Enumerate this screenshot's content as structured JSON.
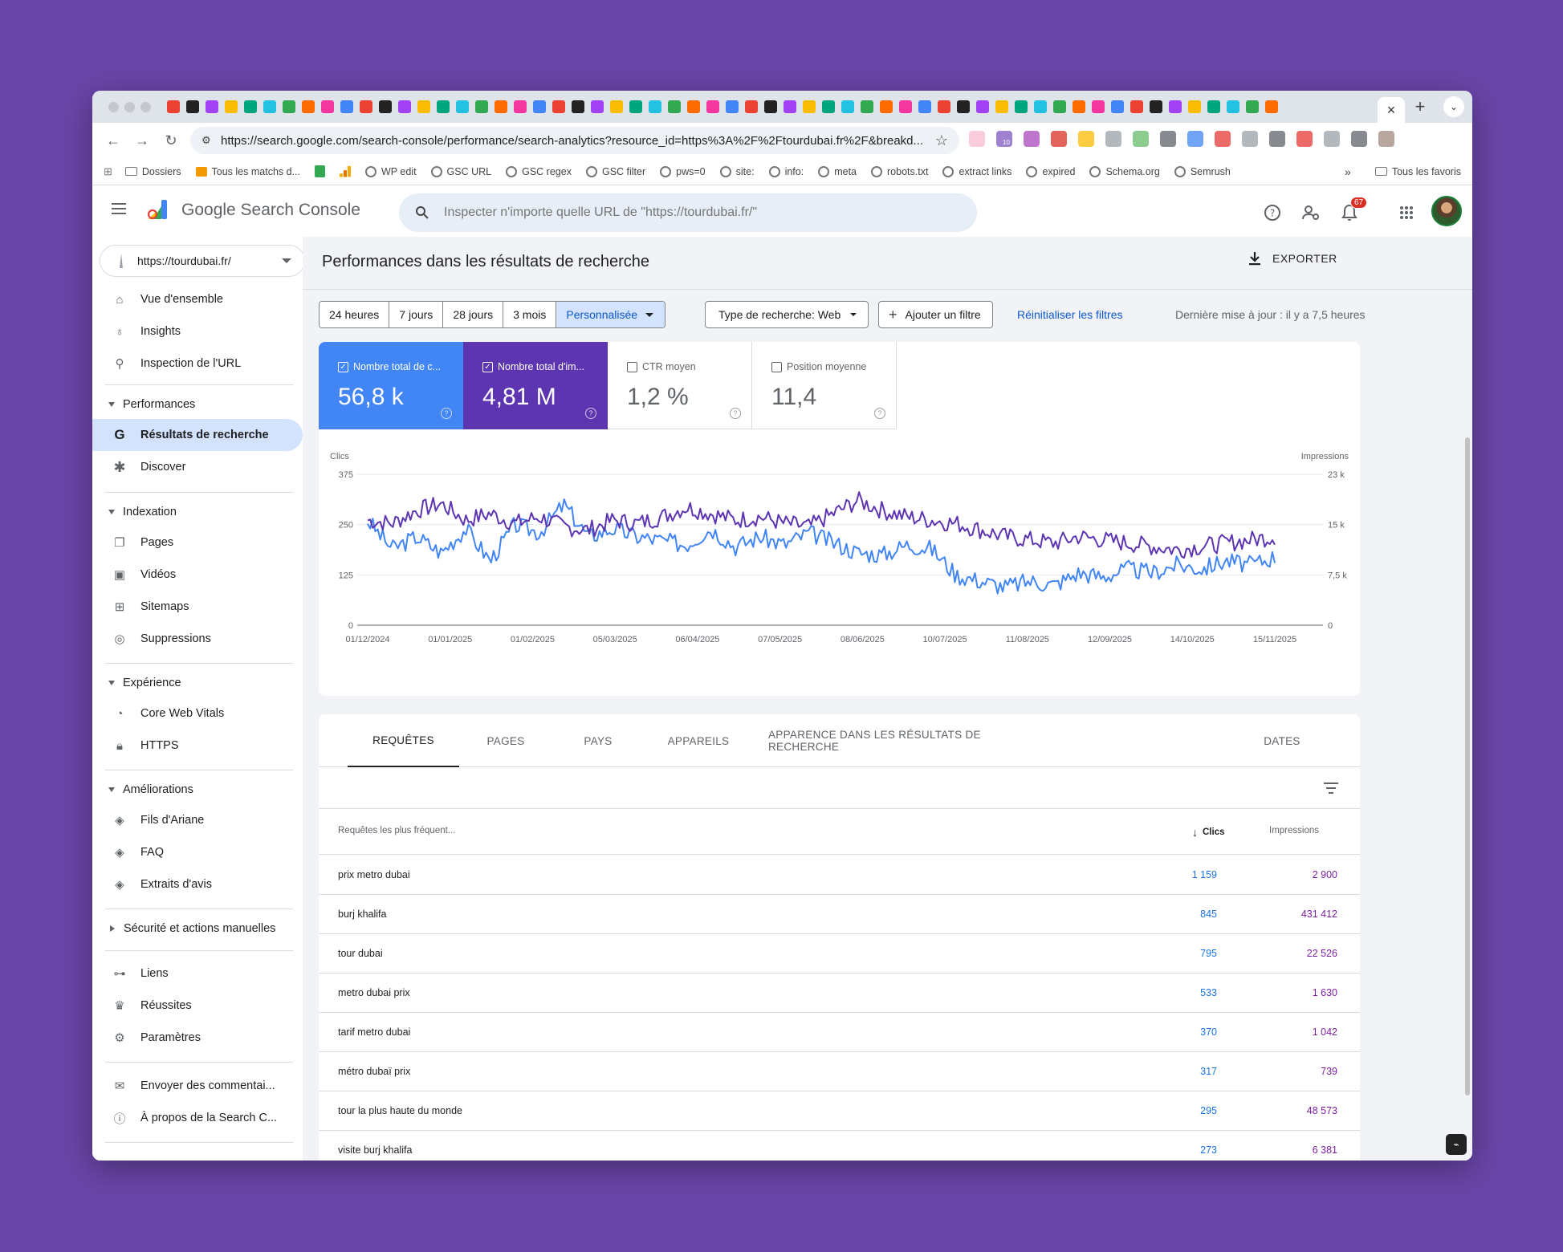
{
  "browser": {
    "tab_close_glyph": "×",
    "new_tab_glyph": "+",
    "url": "https://search.google.com/search-console/performance/search-analytics?resource_id=https%3A%2F%2Ftourdubai.fr%2F&breakd...",
    "ext_badge": "10",
    "bookmarks": [
      {
        "label": "Dossiers",
        "icon": "folder-icon"
      },
      {
        "label": "Tous les matchs d...",
        "icon": "orange-square-icon"
      },
      {
        "label": "",
        "icon": "green-sheet-icon"
      },
      {
        "label": "",
        "icon": "analytics-bars-icon"
      },
      {
        "label": "WP edit",
        "icon": "globe-icon"
      },
      {
        "label": "GSC URL",
        "icon": "globe-icon"
      },
      {
        "label": "GSC regex",
        "icon": "globe-icon"
      },
      {
        "label": "GSC filter",
        "icon": "globe-icon"
      },
      {
        "label": "pws=0",
        "icon": "globe-icon"
      },
      {
        "label": "site:",
        "icon": "globe-icon"
      },
      {
        "label": "info:",
        "icon": "globe-icon"
      },
      {
        "label": "meta",
        "icon": "globe-icon"
      },
      {
        "label": "robots.txt",
        "icon": "globe-icon"
      },
      {
        "label": "extract links",
        "icon": "globe-icon"
      },
      {
        "label": "expired",
        "icon": "globe-icon"
      },
      {
        "label": "Schema.org",
        "icon": "globe-icon"
      },
      {
        "label": "Semrush",
        "icon": "globe-icon"
      }
    ],
    "bookmarks_overflow": "»",
    "all_bookmarks": "Tous les favoris"
  },
  "header": {
    "title": "Google Search Console",
    "search_placeholder": "Inspecter n'importe quelle URL de \"https://tourdubai.fr/\"",
    "notifications_count": "67"
  },
  "sidebar": {
    "property": "https://tourdubai.fr/",
    "items_top": [
      "Vue d'ensemble",
      "Insights",
      "Inspection de l'URL"
    ],
    "performances": {
      "title": "Performances",
      "items": [
        "Résultats de recherche",
        "Discover"
      ]
    },
    "indexation": {
      "title": "Indexation",
      "items": [
        "Pages",
        "Vidéos",
        "Sitemaps",
        "Suppressions"
      ]
    },
    "experience": {
      "title": "Expérience",
      "items": [
        "Core Web Vitals",
        "HTTPS"
      ]
    },
    "ameliorations": {
      "title": "Améliorations",
      "items": [
        "Fils d'Ariane",
        "FAQ",
        "Extraits d'avis"
      ]
    },
    "securite": {
      "title": "Sécurité et actions manuelles"
    },
    "items_bottom": [
      "Liens",
      "Réussites",
      "Paramètres"
    ],
    "items_footer": [
      "Envoyer des commentai...",
      "À propos de la Search C..."
    ]
  },
  "main": {
    "page_title": "Performances dans les résultats de recherche",
    "export": "EXPORTER",
    "date_ranges": [
      "24 heures",
      "7 jours",
      "28 jours",
      "3 mois",
      "Personnalisée"
    ],
    "search_type": "Type de recherche: Web",
    "add_filter": "Ajouter un filtre",
    "reset_filters": "Réinitialiser les filtres",
    "last_update": "Dernière mise à jour : il y a 7,5 heures",
    "metrics": [
      {
        "label": "Nombre total de c...",
        "value": "56,8 k",
        "checked": true,
        "color": "#4285f4"
      },
      {
        "label": "Nombre total d'im...",
        "value": "4,81 M",
        "checked": true,
        "color": "#5e35b1"
      },
      {
        "label": "CTR moyen",
        "value": "1,2 %",
        "checked": false
      },
      {
        "label": "Position moyenne",
        "value": "11,4",
        "checked": false
      }
    ],
    "tabs": [
      "REQUÊTES",
      "PAGES",
      "PAYS",
      "APPAREILS",
      "APPARENCE DANS LES RÉSULTATS DE RECHERCHE",
      "DATES"
    ],
    "table": {
      "headers": {
        "query": "Requêtes les plus fréquent...",
        "clicks": "Clics",
        "impressions": "Impressions"
      },
      "rows": [
        {
          "query": "prix metro dubai",
          "clicks": "1 159",
          "impressions": "2 900"
        },
        {
          "query": "burj khalifa",
          "clicks": "845",
          "impressions": "431 412"
        },
        {
          "query": "tour dubai",
          "clicks": "795",
          "impressions": "22 526"
        },
        {
          "query": "metro dubai prix",
          "clicks": "533",
          "impressions": "1 630"
        },
        {
          "query": "tarif metro dubai",
          "clicks": "370",
          "impressions": "1 042"
        },
        {
          "query": "métro dubaï prix",
          "clicks": "317",
          "impressions": "739"
        },
        {
          "query": "tour la plus haute du monde",
          "clicks": "295",
          "impressions": "48 573"
        },
        {
          "query": "visite burj khalifa",
          "clicks": "273",
          "impressions": "6 381"
        }
      ]
    }
  },
  "chart_data": {
    "type": "line",
    "ylabel": "Clics",
    "y2label": "Impressions",
    "ylim": [
      0,
      375
    ],
    "y2lim": [
      0,
      23000
    ],
    "yticks": [
      "0",
      "125",
      "250",
      "375"
    ],
    "y2ticks": [
      "0",
      "7,5 k",
      "15 k",
      "23 k"
    ],
    "xticks": [
      "01/12/2024",
      "01/01/2025",
      "01/02/2025",
      "05/03/2025",
      "06/04/2025",
      "07/05/2025",
      "08/06/2025",
      "10/07/2025",
      "11/08/2025",
      "12/09/2025",
      "14/10/2025",
      "15/11/2025"
    ],
    "series": [
      {
        "name": "Clics",
        "axis": "left",
        "color": "#4285f4",
        "values": [
          260,
          190,
          220,
          180,
          240,
          160,
          250,
          230,
          300,
          220,
          240,
          220,
          210,
          200,
          240,
          195,
          220,
          200,
          230,
          205,
          180,
          175,
          200,
          190,
          125,
          110,
          95,
          110,
          100,
          130,
          120,
          140,
          130,
          150,
          140,
          160,
          150,
          170
        ]
      },
      {
        "name": "Impressions",
        "axis": "right",
        "color": "#5e35b1",
        "values": [
          16000,
          15500,
          17500,
          18500,
          16000,
          17000,
          15500,
          16500,
          15000,
          14500,
          16000,
          15500,
          16500,
          18000,
          17000,
          16000,
          16500,
          15500,
          15000,
          17000,
          19000,
          17500,
          16500,
          16000,
          15500,
          14500,
          13500,
          13000,
          12500,
          13500,
          13000,
          12500,
          12000,
          11500,
          12000,
          12500,
          13000,
          13500
        ]
      }
    ]
  }
}
